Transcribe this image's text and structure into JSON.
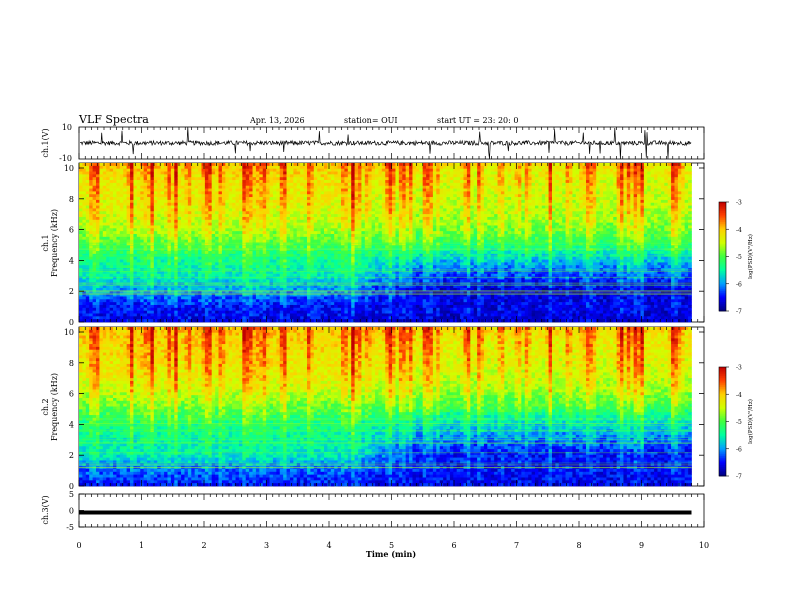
{
  "header": {
    "title": "VLF Spectra",
    "date": "Apr. 13, 2026",
    "station": "station= OUI",
    "start": "start  UT =   23: 20: 0"
  },
  "colors": {
    "colormap": [
      "#000080",
      "#0000ff",
      "#00a0ff",
      "#00ffa0",
      "#40ff40",
      "#d0ff00",
      "#ffd000",
      "#ff4000",
      "#c00000"
    ],
    "waveform": "#000000",
    "ch3_line": "#000000"
  },
  "chart_data": [
    {
      "type": "line",
      "name": "ch1-waveform",
      "ylabel": "ch.1(V)",
      "ylim": [
        -10,
        10
      ],
      "yticks": [
        "10",
        "-10"
      ],
      "baseline": 0,
      "note_values": "broadband noise near 0 V with impulsive spikes up to the panel limits"
    },
    {
      "type": "heatmap",
      "name": "ch1-spectrogram",
      "ylabel": "ch.1\nFrequency (kHz)",
      "ylim": [
        0,
        10
      ],
      "yticks": [
        "10",
        "8",
        "6",
        "4",
        "2",
        "0"
      ],
      "colorbar": {
        "label": "log(PSD)(V²/Hz)",
        "ticks": [
          "-3",
          "-4",
          "-5",
          "-6",
          "-7"
        ],
        "range": [
          -7,
          -3
        ]
      },
      "intensity_profile": {
        "freq_khz": [
          0,
          1,
          2,
          3,
          4,
          5,
          6,
          7,
          8,
          9,
          10
        ],
        "log_psd_first_half": [
          -6.6,
          -6.5,
          -6.0,
          -5.6,
          -5.4,
          -5.0,
          -4.6,
          -4.4,
          -4.3,
          -4.2,
          -4.0
        ],
        "log_psd_second_half": [
          -6.7,
          -6.6,
          -6.7,
          -6.3,
          -5.8,
          -5.2,
          -4.8,
          -4.6,
          -4.5,
          -4.4,
          -4.2
        ]
      }
    },
    {
      "type": "heatmap",
      "name": "ch2-spectrogram",
      "ylabel": "ch.2\nFrequency (kHz)",
      "ylim": [
        0,
        10
      ],
      "yticks": [
        "10",
        "8",
        "6",
        "4",
        "2",
        "0"
      ],
      "colorbar": {
        "label": "log(PSD)(V²/Hz)",
        "ticks": [
          "-3",
          "-4",
          "-5",
          "-6",
          "-7"
        ],
        "range": [
          -7,
          -3
        ]
      },
      "intensity_profile": {
        "freq_khz": [
          0,
          1,
          2,
          3,
          4,
          5,
          6,
          7,
          8,
          9,
          10
        ],
        "log_psd_first_half": [
          -6.5,
          -6.2,
          -5.6,
          -5.5,
          -5.3,
          -4.9,
          -4.5,
          -4.3,
          -4.2,
          -4.1,
          -4.0
        ],
        "log_psd_second_half": [
          -6.6,
          -6.5,
          -6.5,
          -6.1,
          -5.7,
          -5.1,
          -4.7,
          -4.5,
          -4.4,
          -4.3,
          -4.1
        ]
      }
    },
    {
      "type": "line",
      "name": "ch3-signal",
      "ylabel": "ch.3(V)",
      "ylim": [
        -5,
        5
      ],
      "yticks": [
        "5",
        "0",
        "-5"
      ],
      "x": [
        0,
        9.8
      ],
      "y": [
        0,
        0
      ]
    }
  ],
  "xaxis": {
    "label": "Time (min)",
    "range": [
      0,
      10
    ],
    "ticks": [
      "0",
      "1",
      "2",
      "3",
      "4",
      "5",
      "6",
      "7",
      "8",
      "9",
      "10"
    ],
    "data_end": 9.8
  }
}
